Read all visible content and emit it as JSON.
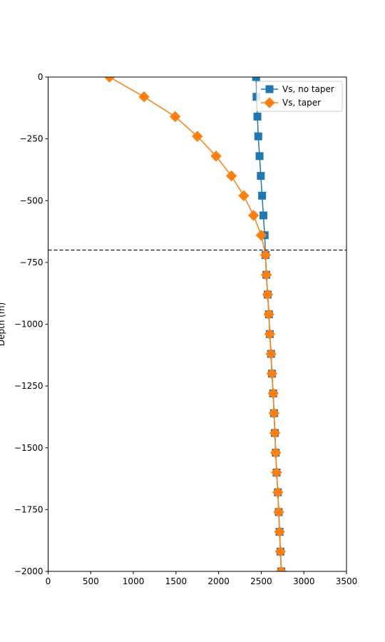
{
  "chart_data": {
    "type": "line",
    "title": "",
    "xlabel": "",
    "ylabel": "Depth (m)",
    "xlim": [
      0,
      3500
    ],
    "ylim": [
      -2000,
      0
    ],
    "xticks": [
      0,
      500,
      1000,
      1500,
      2000,
      2500,
      3000,
      3500
    ],
    "yticks": [
      0,
      -250,
      -500,
      -750,
      -1000,
      -1250,
      -1500,
      -1750,
      -2000
    ],
    "xtick_labels": [
      "0",
      "500",
      "1000",
      "1500",
      "2000",
      "2500",
      "3000",
      "3500"
    ],
    "ytick_labels": [
      "0",
      "−250",
      "−500",
      "−750",
      "−1000",
      "−1250",
      "−1500",
      "−1750",
      "−2000"
    ],
    "grid": false,
    "legend_position": "top-right",
    "reference_line": {
      "y": -700,
      "style": "dashed",
      "color": "#000000"
    },
    "series": [
      {
        "name": "Vs, no taper",
        "color": "#1f77b4",
        "marker": "square",
        "x": [
          2440,
          2445,
          2455,
          2465,
          2480,
          2495,
          2510,
          2525,
          2540,
          2550,
          2560,
          2575,
          2590,
          2600,
          2615,
          2625,
          2640,
          2650,
          2660,
          2670,
          2680,
          2695,
          2705,
          2715,
          2725,
          2735
        ],
        "y": [
          0,
          -80,
          -160,
          -240,
          -320,
          -400,
          -480,
          -560,
          -640,
          -720,
          -800,
          -880,
          -960,
          -1040,
          -1120,
          -1200,
          -1280,
          -1360,
          -1440,
          -1520,
          -1600,
          -1680,
          -1760,
          -1840,
          -1920,
          -2000
        ]
      },
      {
        "name": "Vs, taper",
        "color": "#ff7f0e",
        "marker": "diamond",
        "x": [
          720,
          1125,
          1490,
          1750,
          1970,
          2150,
          2295,
          2410,
          2500,
          2550,
          2560,
          2575,
          2590,
          2600,
          2615,
          2625,
          2640,
          2650,
          2660,
          2670,
          2680,
          2695,
          2705,
          2715,
          2725,
          2735
        ],
        "y": [
          0,
          -80,
          -160,
          -240,
          -320,
          -400,
          -480,
          -560,
          -640,
          -720,
          -800,
          -880,
          -960,
          -1040,
          -1120,
          -1200,
          -1280,
          -1360,
          -1440,
          -1520,
          -1600,
          -1680,
          -1760,
          -1840,
          -1920,
          -2000
        ]
      }
    ]
  }
}
